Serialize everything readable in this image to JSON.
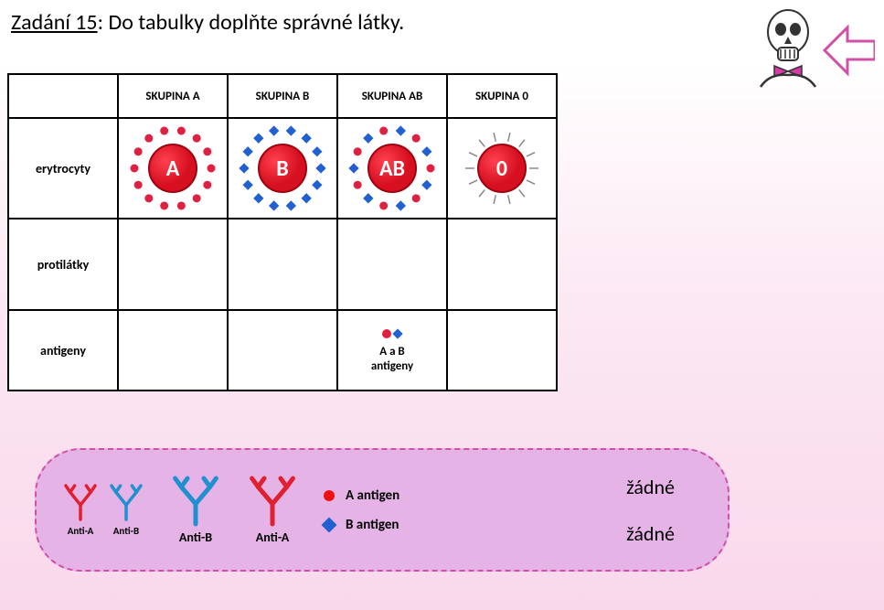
{
  "title_label": "Zadání 15",
  "title_rest": ": Do tabulky doplňte správné látky.",
  "table": {
    "headers": [
      "SKUPINA A",
      "SKUPINA B",
      "SKUPINA AB",
      "SKUPINA 0"
    ],
    "row_labels": [
      "erytrocyty",
      "protilátky",
      "antigeny"
    ],
    "erythrocytes": [
      {
        "letter": "A",
        "markers": "A"
      },
      {
        "letter": "B",
        "markers": "B"
      },
      {
        "letter": "AB",
        "markers": "AB"
      },
      {
        "letter": "0",
        "markers": "none"
      }
    ],
    "antigen_ab_text": "A a B\nantigeny"
  },
  "bank": {
    "pair": [
      {
        "label": "Anti-A",
        "color": "#e02030"
      },
      {
        "label": "Anti-B",
        "color": "#2090d0"
      }
    ],
    "singles": [
      {
        "label": "Anti-B",
        "color": "#2090d0"
      },
      {
        "label": "Anti-A",
        "color": "#e02030"
      }
    ],
    "antigens": [
      {
        "label": "A antigen",
        "shape": "circle",
        "color": "#e11"
      },
      {
        "label": "B antigen",
        "shape": "diamond",
        "color": "#2060d0"
      }
    ],
    "none_label": "žádné"
  },
  "colors": {
    "cell_red": "#d61020",
    "cell_red_dark": "#a00010",
    "markerA": "#e02040",
    "markerB": "#2060d0",
    "markerNone": "#888888",
    "white": "#ffffff"
  },
  "skeleton": {
    "bone": "#ffffff",
    "outline": "#333333",
    "bow": "#d838a8",
    "arrow": "#d050a8"
  }
}
